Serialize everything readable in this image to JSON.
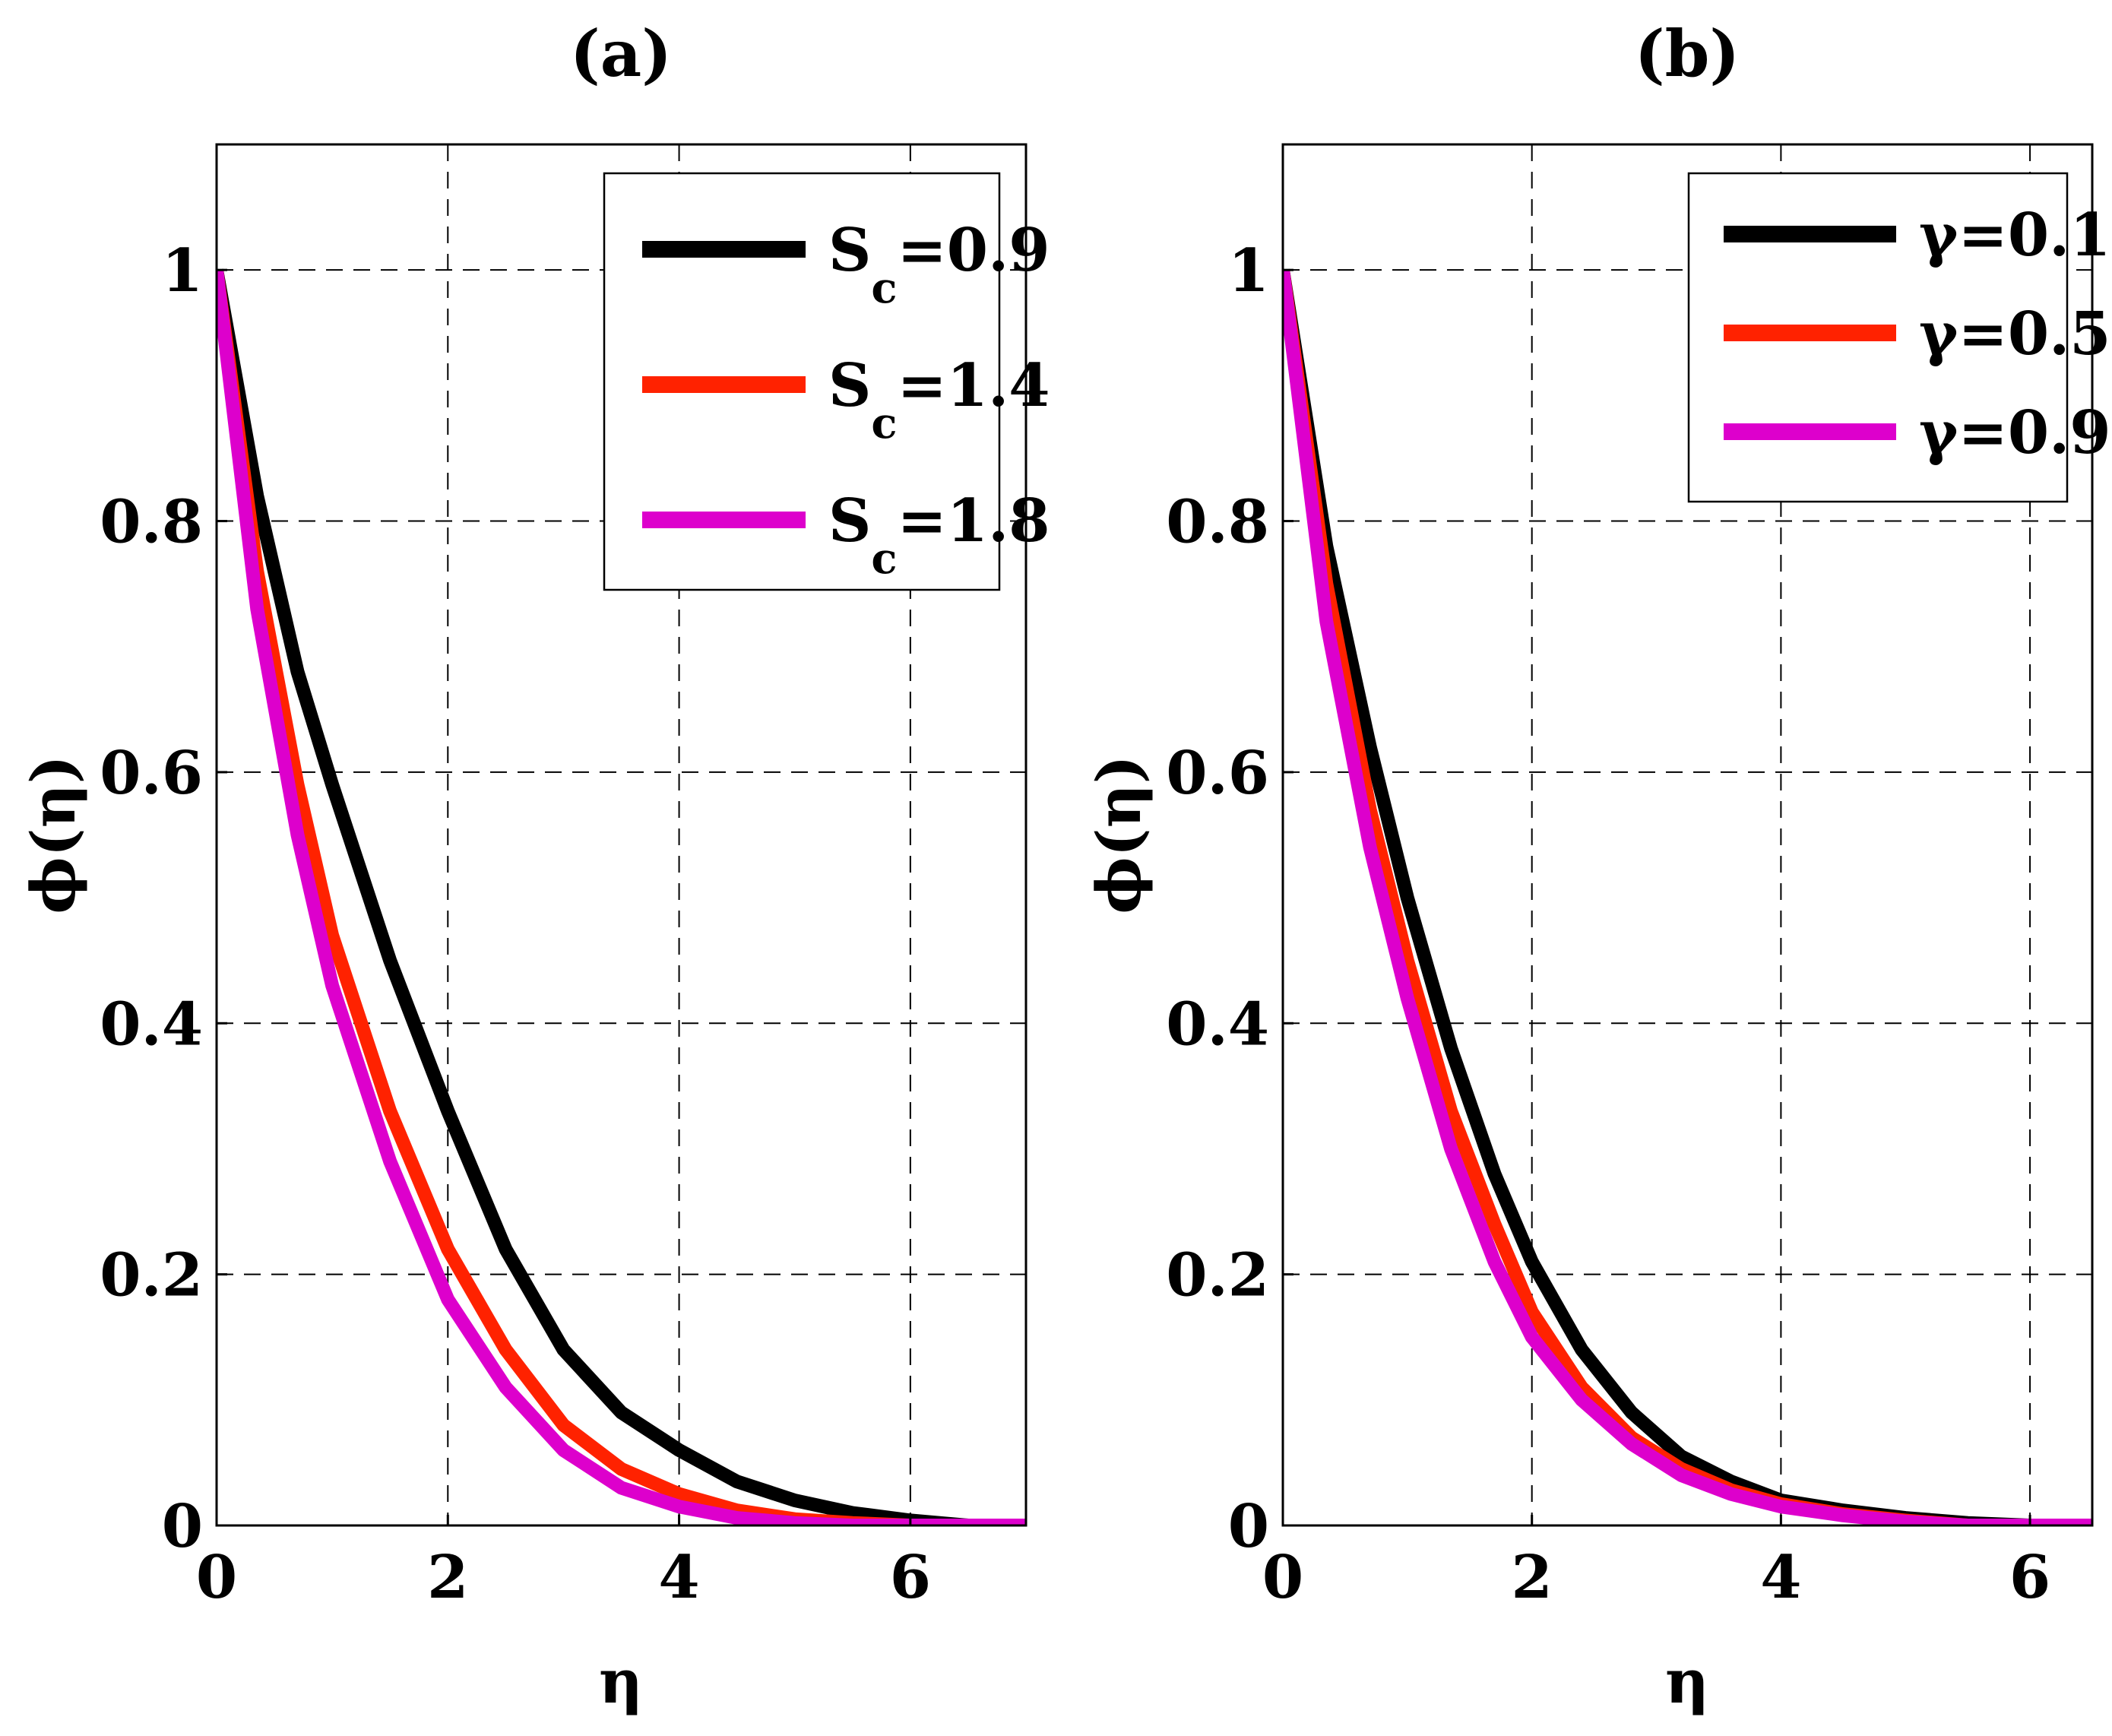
{
  "chart_data": [
    {
      "type": "line",
      "title": "(a)",
      "xlabel": "η",
      "ylabel": "ϕ(η)",
      "xlim": [
        0,
        7
      ],
      "ylim": [
        0,
        1.1
      ],
      "xticks": [
        0,
        2,
        4,
        6
      ],
      "xtick_labels": [
        "0",
        "2",
        "4",
        "6"
      ],
      "yticks": [
        0,
        0.2,
        0.4,
        0.6,
        0.8,
        1
      ],
      "ytick_labels": [
        "0",
        "0.2",
        "0.4",
        "0.6",
        "0.8",
        "1"
      ],
      "grid": true,
      "legend_position": "top-right",
      "x": [
        0,
        0.35,
        0.7,
        1.0,
        1.5,
        2.0,
        2.5,
        3.0,
        3.5,
        4.0,
        4.5,
        5.0,
        5.5,
        6.0,
        6.5,
        7.0
      ],
      "series": [
        {
          "name": "S_c=0.9",
          "label_main": "S",
          "label_sub": "c",
          "label_tail": "=0.9",
          "color": "#000000",
          "values": [
            1.0,
            0.82,
            0.68,
            0.59,
            0.45,
            0.33,
            0.22,
            0.14,
            0.09,
            0.06,
            0.035,
            0.02,
            0.01,
            0.004,
            0.0,
            0.0
          ]
        },
        {
          "name": "S_c=1.4",
          "label_main": "S",
          "label_sub": "c",
          "label_tail": "=1.4",
          "color": "#ff2200",
          "values": [
            1.0,
            0.76,
            0.59,
            0.47,
            0.33,
            0.22,
            0.14,
            0.08,
            0.045,
            0.025,
            0.012,
            0.005,
            0.002,
            0.0,
            0.0,
            0.0
          ]
        },
        {
          "name": "S_c=1.8",
          "label_main": "S",
          "label_sub": "c",
          "label_tail": "=1.8",
          "color": "#dd00cc",
          "values": [
            1.0,
            0.73,
            0.55,
            0.43,
            0.29,
            0.18,
            0.11,
            0.06,
            0.03,
            0.015,
            0.006,
            0.002,
            0.0,
            0.0,
            0.0,
            0.0
          ]
        }
      ]
    },
    {
      "type": "line",
      "title": "(b)",
      "xlabel": "η",
      "ylabel": "ϕ(η)",
      "xlim": [
        0,
        6.5
      ],
      "ylim": [
        0,
        1.1
      ],
      "xticks": [
        0,
        2,
        4,
        6
      ],
      "xtick_labels": [
        "0",
        "2",
        "4",
        "6"
      ],
      "yticks": [
        0,
        0.2,
        0.4,
        0.6,
        0.8,
        1
      ],
      "ytick_labels": [
        "0",
        "0.2",
        "0.4",
        "0.6",
        "0.8",
        "1"
      ],
      "grid": true,
      "legend_position": "top-right",
      "x": [
        0,
        0.35,
        0.7,
        1.0,
        1.35,
        1.7,
        2.0,
        2.4,
        2.8,
        3.2,
        3.6,
        4.0,
        4.5,
        5.0,
        5.5,
        6.0,
        6.5
      ],
      "series": [
        {
          "name": "γ=0.1",
          "label_main": "γ",
          "label_sub": "",
          "label_tail": "=0.1",
          "color": "#000000",
          "values": [
            1.0,
            0.78,
            0.62,
            0.5,
            0.38,
            0.28,
            0.21,
            0.14,
            0.09,
            0.055,
            0.035,
            0.02,
            0.012,
            0.006,
            0.002,
            0.0,
            0.0
          ]
        },
        {
          "name": "γ=0.5",
          "label_main": "γ",
          "label_sub": "",
          "label_tail": "=0.5",
          "color": "#ff2200",
          "values": [
            1.0,
            0.75,
            0.57,
            0.45,
            0.33,
            0.24,
            0.17,
            0.11,
            0.07,
            0.045,
            0.028,
            0.017,
            0.009,
            0.004,
            0.0,
            0.0,
            0.0
          ]
        },
        {
          "name": "γ=0.9",
          "label_main": "γ",
          "label_sub": "",
          "label_tail": "=0.9",
          "color": "#dd00cc",
          "values": [
            1.0,
            0.72,
            0.54,
            0.42,
            0.3,
            0.21,
            0.15,
            0.1,
            0.065,
            0.04,
            0.025,
            0.015,
            0.008,
            0.003,
            0.0,
            0.0,
            0.0
          ]
        }
      ]
    }
  ]
}
